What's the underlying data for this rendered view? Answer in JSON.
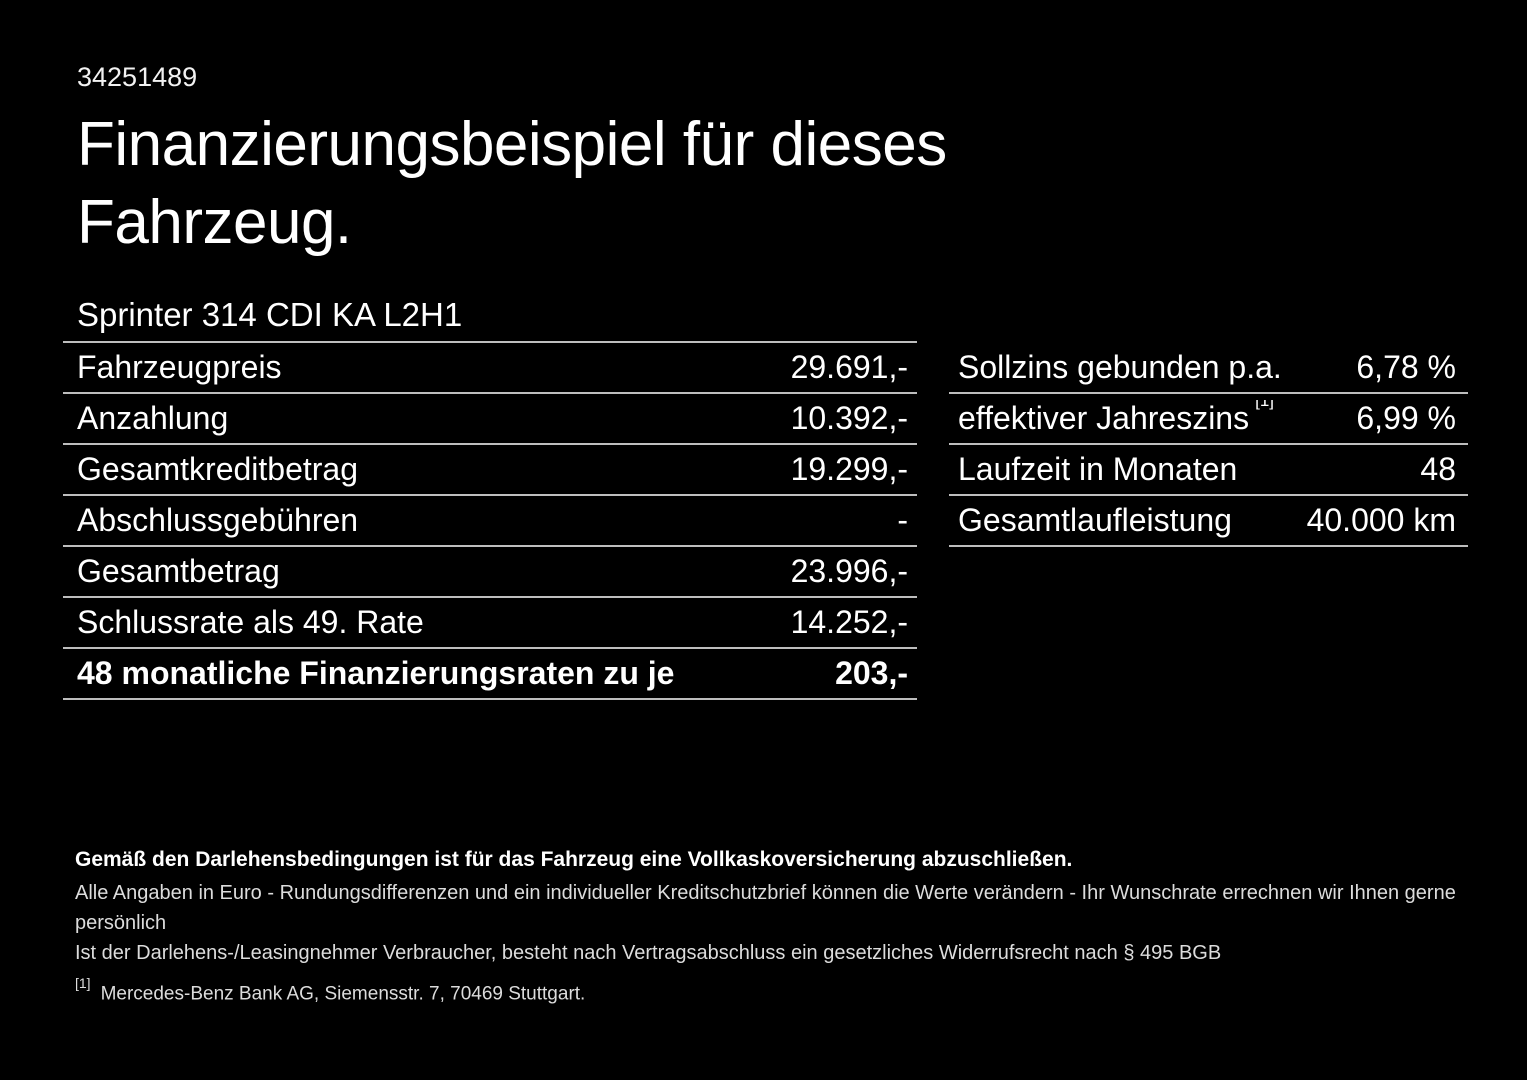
{
  "page": {
    "background": "#000000",
    "text_color": "#ffffff",
    "divider_color": "#bdbdbd"
  },
  "header": {
    "id_number": "34251489",
    "title": "Finanzierungsbeispiel für dieses Fahrzeug.",
    "vehicle_model": "Sprinter 314 CDI KA L2H1"
  },
  "finance_table": {
    "rows": [
      {
        "label": "Fahrzeugpreis",
        "value": "29.691,-"
      },
      {
        "label": "Anzahlung",
        "value": "10.392,-"
      },
      {
        "label": "Gesamtkreditbetrag",
        "value": "19.299,-"
      },
      {
        "label": "Abschlussgebühren",
        "value": "-"
      },
      {
        "label": "Gesamtbetrag",
        "value": "23.996,-"
      },
      {
        "label": "Schlussrate als 49. Rate",
        "value": "14.252,-"
      },
      {
        "label": "48 monatliche Finanzierungsraten zu je",
        "value": "203,-"
      }
    ]
  },
  "conditions_table": {
    "rows": [
      {
        "label": "Sollzins gebunden p.a.",
        "value": "6,78 %"
      },
      {
        "label": "effektiver Jahreszins",
        "footnote_marker": "[1]",
        "value": "6,99 %"
      },
      {
        "label": "Laufzeit in Monaten",
        "value": "48"
      },
      {
        "label": "Gesamtlaufleistung",
        "value": "40.000 km"
      }
    ]
  },
  "footer": {
    "insurance_note": "Gemäß den Darlehensbedingungen ist für das Fahrzeug eine Vollkaskoversicherung abzuschließen.",
    "disclaimer_line1": "Alle Angaben in Euro - Rundungsdifferenzen und ein individueller Kreditschutzbrief können die Werte verändern - Ihr Wunschrate errechnen wir Ihnen gerne persönlich",
    "disclaimer_line2": "Ist der Darlehens-/Leasingnehmer Verbraucher, besteht nach Vertragsabschluss ein gesetzliches Widerrufsrecht nach § 495 BGB",
    "footnote_marker": "[1]",
    "footnote_text": "Mercedes-Benz Bank AG, Siemensstr. 7, 70469 Stuttgart."
  }
}
